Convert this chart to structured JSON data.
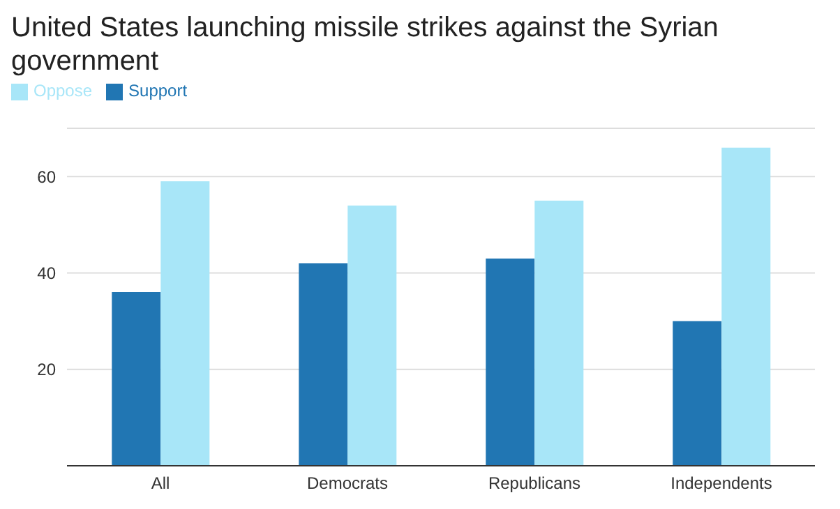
{
  "chart_data": {
    "type": "bar",
    "title": "United States launching missile strikes against the Syrian government",
    "categories": [
      "All",
      "Democrats",
      "Republicans",
      "Independents"
    ],
    "series": [
      {
        "name": "Support",
        "color": "#2176b3",
        "values": [
          36,
          42,
          43,
          30
        ]
      },
      {
        "name": "Oppose",
        "color": "#a8e6f8",
        "values": [
          59,
          54,
          55,
          66
        ]
      }
    ],
    "ylim": [
      0,
      70
    ],
    "yticks": [
      20,
      40,
      60
    ],
    "grid": "y",
    "legend": "top left"
  }
}
